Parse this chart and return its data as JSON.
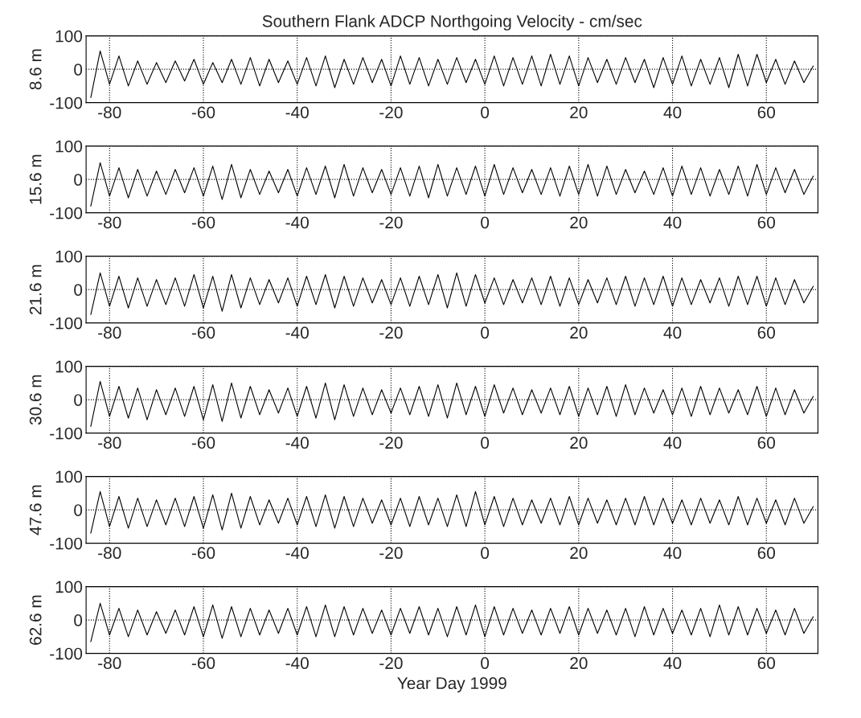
{
  "chart_data": [
    {
      "type": "line",
      "title": "Southern Flank ADCP Northgoing Velocity - cm/sec",
      "ylabel": "8.6 m",
      "xlim": [
        -85,
        71
      ],
      "xticks": [
        -80,
        -60,
        -40,
        -20,
        0,
        20,
        40,
        60
      ],
      "ylim": [
        -100,
        100
      ],
      "yticks": [
        -100,
        0,
        100
      ],
      "grid": true,
      "line_style": "solid",
      "marker": "none",
      "x": [
        -84,
        -82,
        -80,
        -78,
        -76,
        -74,
        -72,
        -70,
        -68,
        -66,
        -64,
        -62,
        -60,
        -58,
        -56,
        -54,
        -52,
        -50,
        -48,
        -46,
        -44,
        -42,
        -40,
        -38,
        -36,
        -34,
        -32,
        -30,
        -28,
        -26,
        -24,
        -22,
        -20,
        -18,
        -16,
        -14,
        -12,
        -10,
        -8,
        -6,
        -4,
        -2,
        0,
        2,
        4,
        6,
        8,
        10,
        12,
        14,
        16,
        18,
        20,
        22,
        24,
        26,
        28,
        30,
        32,
        34,
        36,
        38,
        40,
        42,
        44,
        46,
        48,
        50,
        52,
        54,
        56,
        58,
        60,
        62,
        64,
        66,
        68,
        70
      ],
      "series": [
        {
          "color": "#000000",
          "values": [
            -85,
            55,
            -45,
            40,
            -50,
            25,
            -45,
            20,
            -40,
            25,
            -35,
            30,
            -45,
            20,
            -40,
            30,
            -45,
            35,
            -50,
            30,
            -40,
            25,
            -45,
            35,
            -50,
            40,
            -55,
            30,
            -45,
            35,
            -40,
            30,
            -50,
            40,
            -45,
            35,
            -50,
            30,
            -45,
            35,
            -40,
            30,
            -45,
            40,
            -50,
            35,
            -45,
            40,
            -50,
            45,
            -45,
            40,
            -50,
            35,
            -40,
            30,
            -45,
            35,
            -40,
            30,
            -55,
            35,
            -45,
            40,
            -50,
            30,
            -45,
            35,
            -55,
            45,
            -50,
            45,
            -40,
            30,
            -45,
            25,
            -40,
            10
          ]
        }
      ]
    },
    {
      "type": "line",
      "ylabel": "15.6 m",
      "xlim": [
        -85,
        71
      ],
      "xticks": [
        -80,
        -60,
        -40,
        -20,
        0,
        20,
        40,
        60
      ],
      "ylim": [
        -100,
        100
      ],
      "yticks": [
        -100,
        0,
        100
      ],
      "grid": true,
      "line_style": "solid",
      "marker": "none",
      "x": [
        -84,
        -82,
        -80,
        -78,
        -76,
        -74,
        -72,
        -70,
        -68,
        -66,
        -64,
        -62,
        -60,
        -58,
        -56,
        -54,
        -52,
        -50,
        -48,
        -46,
        -44,
        -42,
        -40,
        -38,
        -36,
        -34,
        -32,
        -30,
        -28,
        -26,
        -24,
        -22,
        -20,
        -18,
        -16,
        -14,
        -12,
        -10,
        -8,
        -6,
        -4,
        -2,
        0,
        2,
        4,
        6,
        8,
        10,
        12,
        14,
        16,
        18,
        20,
        22,
        24,
        26,
        28,
        30,
        32,
        34,
        36,
        38,
        40,
        42,
        44,
        46,
        48,
        50,
        52,
        54,
        56,
        58,
        60,
        62,
        64,
        66,
        68,
        70
      ],
      "series": [
        {
          "color": "#000000",
          "values": [
            -80,
            50,
            -50,
            35,
            -55,
            30,
            -50,
            25,
            -45,
            30,
            -40,
            35,
            -50,
            40,
            -60,
            45,
            -55,
            30,
            -45,
            25,
            -40,
            30,
            -50,
            35,
            -45,
            40,
            -55,
            45,
            -50,
            35,
            -40,
            30,
            -45,
            35,
            -50,
            40,
            -55,
            45,
            -50,
            35,
            -45,
            40,
            -50,
            45,
            -45,
            35,
            -40,
            30,
            -45,
            35,
            -50,
            40,
            -45,
            45,
            -50,
            40,
            -45,
            30,
            -40,
            25,
            -45,
            35,
            -50,
            40,
            -45,
            35,
            -50,
            30,
            -45,
            40,
            -50,
            45,
            -45,
            35,
            -40,
            30,
            -45,
            10
          ]
        }
      ]
    },
    {
      "type": "line",
      "ylabel": "21.6 m",
      "xlim": [
        -85,
        71
      ],
      "xticks": [
        -80,
        -60,
        -40,
        -20,
        0,
        20,
        40,
        60
      ],
      "ylim": [
        -100,
        100
      ],
      "yticks": [
        -100,
        0,
        100
      ],
      "grid": true,
      "line_style": "solid",
      "marker": "none",
      "x": [
        -84,
        -82,
        -80,
        -78,
        -76,
        -74,
        -72,
        -70,
        -68,
        -66,
        -64,
        -62,
        -60,
        -58,
        -56,
        -54,
        -52,
        -50,
        -48,
        -46,
        -44,
        -42,
        -40,
        -38,
        -36,
        -34,
        -32,
        -30,
        -28,
        -26,
        -24,
        -22,
        -20,
        -18,
        -16,
        -14,
        -12,
        -10,
        -8,
        -6,
        -4,
        -2,
        0,
        2,
        4,
        6,
        8,
        10,
        12,
        14,
        16,
        18,
        20,
        22,
        24,
        26,
        28,
        30,
        32,
        34,
        36,
        38,
        40,
        42,
        44,
        46,
        48,
        50,
        52,
        54,
        56,
        58,
        60,
        62,
        64,
        66,
        68,
        70
      ],
      "series": [
        {
          "color": "#000000",
          "values": [
            -75,
            50,
            -50,
            40,
            -55,
            35,
            -50,
            30,
            -45,
            35,
            -50,
            45,
            -55,
            40,
            -65,
            45,
            -55,
            35,
            -45,
            30,
            -40,
            35,
            -50,
            40,
            -45,
            45,
            -55,
            40,
            -50,
            35,
            -40,
            30,
            -45,
            35,
            -50,
            40,
            -45,
            45,
            -55,
            50,
            -50,
            45,
            -40,
            35,
            -45,
            30,
            -40,
            35,
            -45,
            40,
            -50,
            35,
            -45,
            30,
            -40,
            35,
            -45,
            40,
            -50,
            35,
            -45,
            40,
            -50,
            35,
            -45,
            30,
            -40,
            35,
            -50,
            40,
            -45,
            40,
            -50,
            35,
            -45,
            30,
            -40,
            10
          ]
        }
      ]
    },
    {
      "type": "line",
      "ylabel": "30.6 m",
      "xlim": [
        -85,
        71
      ],
      "xticks": [
        -80,
        -60,
        -40,
        -20,
        0,
        20,
        40,
        60
      ],
      "ylim": [
        -100,
        100
      ],
      "yticks": [
        -100,
        0,
        100
      ],
      "grid": true,
      "line_style": "solid",
      "marker": "none",
      "x": [
        -84,
        -82,
        -80,
        -78,
        -76,
        -74,
        -72,
        -70,
        -68,
        -66,
        -64,
        -62,
        -60,
        -58,
        -56,
        -54,
        -52,
        -50,
        -48,
        -46,
        -44,
        -42,
        -40,
        -38,
        -36,
        -34,
        -32,
        -30,
        -28,
        -26,
        -24,
        -22,
        -20,
        -18,
        -16,
        -14,
        -12,
        -10,
        -8,
        -6,
        -4,
        -2,
        0,
        2,
        4,
        6,
        8,
        10,
        12,
        14,
        16,
        18,
        20,
        22,
        24,
        26,
        28,
        30,
        32,
        34,
        36,
        38,
        40,
        42,
        44,
        46,
        48,
        50,
        52,
        54,
        56,
        58,
        60,
        62,
        64,
        66,
        68,
        70
      ],
      "series": [
        {
          "color": "#000000",
          "values": [
            -80,
            55,
            -50,
            40,
            -55,
            35,
            -60,
            30,
            -45,
            35,
            -50,
            40,
            -60,
            45,
            -65,
            50,
            -55,
            40,
            -45,
            30,
            -40,
            35,
            -50,
            40,
            -55,
            50,
            -60,
            45,
            -50,
            35,
            -45,
            30,
            -40,
            35,
            -45,
            40,
            -50,
            45,
            -55,
            50,
            -45,
            40,
            -50,
            45,
            -40,
            35,
            -45,
            30,
            -40,
            35,
            -45,
            40,
            -50,
            35,
            -45,
            40,
            -50,
            45,
            -45,
            35,
            -40,
            30,
            -45,
            35,
            -50,
            40,
            -45,
            35,
            -40,
            30,
            -45,
            40,
            -50,
            35,
            -45,
            30,
            -40,
            10
          ]
        }
      ]
    },
    {
      "type": "line",
      "ylabel": "47.6 m",
      "xlim": [
        -85,
        71
      ],
      "xticks": [
        -80,
        -60,
        -40,
        -20,
        0,
        20,
        40,
        60
      ],
      "ylim": [
        -100,
        100
      ],
      "yticks": [
        -100,
        0,
        100
      ],
      "grid": true,
      "line_style": "solid",
      "marker": "none",
      "x": [
        -84,
        -82,
        -80,
        -78,
        -76,
        -74,
        -72,
        -70,
        -68,
        -66,
        -64,
        -62,
        -60,
        -58,
        -56,
        -54,
        -52,
        -50,
        -48,
        -46,
        -44,
        -42,
        -40,
        -38,
        -36,
        -34,
        -32,
        -30,
        -28,
        -26,
        -24,
        -22,
        -20,
        -18,
        -16,
        -14,
        -12,
        -10,
        -8,
        -6,
        -4,
        -2,
        0,
        2,
        4,
        6,
        8,
        10,
        12,
        14,
        16,
        18,
        20,
        22,
        24,
        26,
        28,
        30,
        32,
        34,
        36,
        38,
        40,
        42,
        44,
        46,
        48,
        50,
        52,
        54,
        56,
        58,
        60,
        62,
        64,
        66,
        68,
        70
      ],
      "series": [
        {
          "color": "#000000",
          "values": [
            -70,
            55,
            -50,
            40,
            -55,
            35,
            -50,
            30,
            -45,
            35,
            -50,
            40,
            -55,
            45,
            -60,
            50,
            -55,
            40,
            -45,
            30,
            -40,
            35,
            -45,
            40,
            -50,
            45,
            -55,
            40,
            -50,
            35,
            -40,
            30,
            -45,
            35,
            -50,
            40,
            -45,
            35,
            -50,
            45,
            -50,
            55,
            -45,
            40,
            -50,
            35,
            -45,
            30,
            -40,
            35,
            -45,
            40,
            -45,
            35,
            -40,
            30,
            -45,
            35,
            -45,
            40,
            -45,
            35,
            -40,
            30,
            -45,
            35,
            -40,
            30,
            -45,
            40,
            -45,
            35,
            -40,
            30,
            -45,
            35,
            -40,
            10
          ]
        }
      ]
    },
    {
      "type": "line",
      "ylabel": "62.6 m",
      "xlabel": "Year Day 1999",
      "xlim": [
        -85,
        71
      ],
      "xticks": [
        -80,
        -60,
        -40,
        -20,
        0,
        20,
        40,
        60
      ],
      "ylim": [
        -100,
        100
      ],
      "yticks": [
        -100,
        0,
        100
      ],
      "grid": true,
      "line_style": "solid",
      "marker": "none",
      "x": [
        -84,
        -82,
        -80,
        -78,
        -76,
        -74,
        -72,
        -70,
        -68,
        -66,
        -64,
        -62,
        -60,
        -58,
        -56,
        -54,
        -52,
        -50,
        -48,
        -46,
        -44,
        -42,
        -40,
        -38,
        -36,
        -34,
        -32,
        -30,
        -28,
        -26,
        -24,
        -22,
        -20,
        -18,
        -16,
        -14,
        -12,
        -10,
        -8,
        -6,
        -4,
        -2,
        0,
        2,
        4,
        6,
        8,
        10,
        12,
        14,
        16,
        18,
        20,
        22,
        24,
        26,
        28,
        30,
        32,
        34,
        36,
        38,
        40,
        42,
        44,
        46,
        48,
        50,
        52,
        54,
        56,
        58,
        60,
        62,
        64,
        66,
        68,
        70
      ],
      "series": [
        {
          "color": "#000000",
          "values": [
            -65,
            50,
            -45,
            35,
            -50,
            30,
            -45,
            25,
            -40,
            30,
            -45,
            40,
            -50,
            45,
            -55,
            40,
            -50,
            35,
            -45,
            30,
            -40,
            35,
            -45,
            40,
            -50,
            45,
            -50,
            40,
            -45,
            35,
            -40,
            30,
            -45,
            35,
            -40,
            40,
            -45,
            35,
            -50,
            40,
            -45,
            45,
            -50,
            40,
            -45,
            35,
            -40,
            30,
            -45,
            35,
            -40,
            40,
            -45,
            35,
            -40,
            30,
            -45,
            35,
            -50,
            40,
            -45,
            35,
            -40,
            30,
            -45,
            35,
            -50,
            45,
            -45,
            40,
            -45,
            35,
            -40,
            30,
            -45,
            35,
            -40,
            10
          ]
        }
      ]
    }
  ]
}
